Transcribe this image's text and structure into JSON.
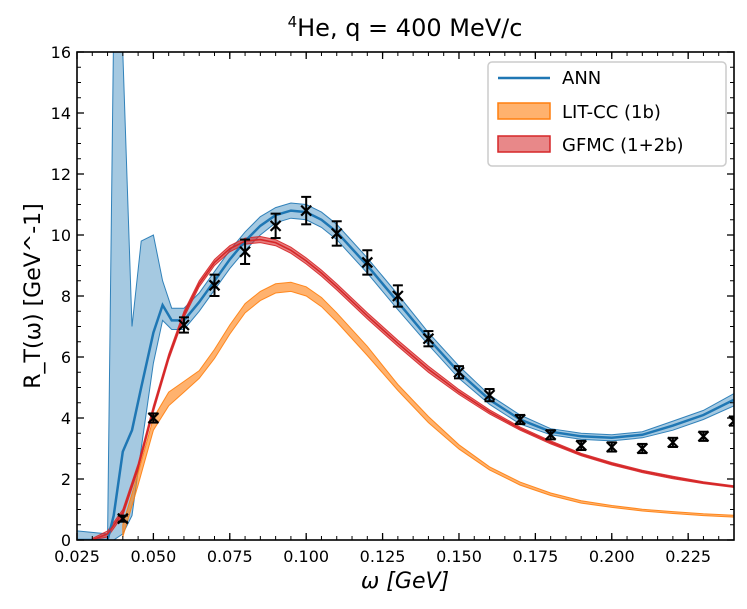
{
  "chart_data": {
    "type": "line",
    "title_prefix": "4",
    "title_rest": "He, q = 400 MeV/c",
    "xlabel": "ω  [GeV]",
    "ylabel": "R_T(ω) [GeV^-1]",
    "xlim": [
      0.025,
      0.24
    ],
    "ylim": [
      0,
      16
    ],
    "xticks": [
      0.025,
      0.05,
      0.075,
      0.1,
      0.125,
      0.15,
      0.175,
      0.2,
      0.225
    ],
    "xtick_labels": [
      "0.025",
      "0.050",
      "0.075",
      "0.100",
      "0.125",
      "0.150",
      "0.175",
      "0.200",
      "0.225"
    ],
    "yticks": [
      0,
      2,
      4,
      6,
      8,
      10,
      12,
      14,
      16
    ],
    "ytick_labels": [
      "0",
      "2",
      "4",
      "6",
      "8",
      "10",
      "12",
      "14",
      "16"
    ],
    "legend": [
      "ANN",
      "LIT-CC (1b)",
      "GFMC (1+2b)"
    ],
    "colors": {
      "ann": "#1f77b4",
      "litcc": "#ff7f0e",
      "gfmc": "#d62728"
    },
    "series": [
      {
        "name": "ANN",
        "x": [
          0.025,
          0.035,
          0.037,
          0.04,
          0.043,
          0.046,
          0.05,
          0.053,
          0.056,
          0.06,
          0.065,
          0.07,
          0.075,
          0.08,
          0.085,
          0.09,
          0.095,
          0.1,
          0.105,
          0.11,
          0.12,
          0.13,
          0.14,
          0.15,
          0.16,
          0.17,
          0.18,
          0.19,
          0.2,
          0.21,
          0.22,
          0.23,
          0.24
        ],
        "y": [
          0.0,
          0.0,
          0.8,
          2.9,
          3.6,
          5.0,
          6.8,
          7.7,
          7.2,
          7.2,
          7.8,
          8.5,
          9.2,
          9.8,
          10.3,
          10.65,
          10.8,
          10.75,
          10.5,
          10.1,
          9.0,
          7.8,
          6.6,
          5.5,
          4.6,
          3.95,
          3.55,
          3.4,
          3.35,
          3.45,
          3.75,
          4.1,
          4.6
        ],
        "lower": [
          0.0,
          0.0,
          0.0,
          0.2,
          0.8,
          3.0,
          5.8,
          7.2,
          6.9,
          6.9,
          7.5,
          8.2,
          8.9,
          9.5,
          10.0,
          10.4,
          10.55,
          10.5,
          10.25,
          9.85,
          8.75,
          7.55,
          6.4,
          5.3,
          4.45,
          3.8,
          3.45,
          3.3,
          3.25,
          3.35,
          3.6,
          3.95,
          4.4
        ],
        "upper": [
          0.3,
          0.2,
          17.0,
          16.0,
          7.0,
          9.8,
          10.0,
          8.5,
          7.6,
          7.6,
          8.1,
          8.8,
          9.5,
          10.1,
          10.6,
          10.9,
          11.05,
          11.0,
          10.75,
          10.35,
          9.25,
          8.05,
          6.8,
          5.7,
          4.75,
          4.1,
          3.65,
          3.5,
          3.45,
          3.55,
          3.9,
          4.25,
          4.8
        ]
      },
      {
        "name": "LIT-CC (1b)",
        "x": [
          0.04,
          0.045,
          0.05,
          0.055,
          0.06,
          0.065,
          0.07,
          0.075,
          0.08,
          0.085,
          0.09,
          0.095,
          0.1,
          0.105,
          0.11,
          0.12,
          0.13,
          0.14,
          0.15,
          0.16,
          0.17,
          0.18,
          0.19,
          0.2,
          0.21,
          0.22,
          0.23,
          0.24
        ],
        "y": [
          0.3,
          2.0,
          3.8,
          4.6,
          5.0,
          5.4,
          6.1,
          6.9,
          7.6,
          8.0,
          8.25,
          8.3,
          8.15,
          7.8,
          7.3,
          6.2,
          5.0,
          3.95,
          3.05,
          2.35,
          1.85,
          1.5,
          1.25,
          1.1,
          0.98,
          0.9,
          0.83,
          0.78
        ],
        "lower": [
          0.1,
          1.8,
          3.6,
          4.4,
          4.85,
          5.3,
          5.95,
          6.75,
          7.45,
          7.85,
          8.1,
          8.15,
          8.0,
          7.65,
          7.15,
          6.05,
          4.9,
          3.85,
          2.98,
          2.3,
          1.8,
          1.46,
          1.21,
          1.07,
          0.95,
          0.87,
          0.8,
          0.75
        ],
        "upper": [
          0.5,
          2.2,
          4.0,
          4.85,
          5.2,
          5.55,
          6.25,
          7.05,
          7.75,
          8.15,
          8.4,
          8.45,
          8.3,
          7.95,
          7.45,
          6.35,
          5.1,
          4.05,
          3.12,
          2.4,
          1.9,
          1.54,
          1.29,
          1.13,
          1.01,
          0.93,
          0.86,
          0.81
        ]
      },
      {
        "name": "GFMC (1+2b)",
        "x": [
          0.03,
          0.035,
          0.04,
          0.045,
          0.05,
          0.055,
          0.06,
          0.065,
          0.07,
          0.075,
          0.08,
          0.085,
          0.09,
          0.095,
          0.1,
          0.105,
          0.11,
          0.12,
          0.13,
          0.14,
          0.15,
          0.16,
          0.17,
          0.18,
          0.19,
          0.2,
          0.21,
          0.22,
          0.23,
          0.24
        ],
        "y": [
          0.0,
          0.2,
          0.9,
          2.4,
          4.3,
          6.0,
          7.4,
          8.4,
          9.1,
          9.55,
          9.8,
          9.85,
          9.75,
          9.5,
          9.15,
          8.75,
          8.3,
          7.35,
          6.45,
          5.6,
          4.85,
          4.2,
          3.65,
          3.2,
          2.8,
          2.5,
          2.25,
          2.05,
          1.88,
          1.75
        ],
        "lower": [
          0.0,
          0.1,
          0.8,
          2.3,
          4.2,
          5.9,
          7.3,
          8.3,
          9.0,
          9.45,
          9.7,
          9.75,
          9.65,
          9.4,
          9.05,
          8.65,
          8.2,
          7.25,
          6.35,
          5.5,
          4.77,
          4.13,
          3.6,
          3.15,
          2.76,
          2.46,
          2.21,
          2.01,
          1.85,
          1.72
        ],
        "upper": [
          0.05,
          0.3,
          1.0,
          2.5,
          4.4,
          6.1,
          7.5,
          8.5,
          9.2,
          9.65,
          9.9,
          9.95,
          9.85,
          9.6,
          9.25,
          8.85,
          8.4,
          7.45,
          6.55,
          5.7,
          4.93,
          4.27,
          3.7,
          3.25,
          2.84,
          2.54,
          2.29,
          2.09,
          1.91,
          1.78
        ]
      }
    ],
    "data_points": {
      "name": "data",
      "x": [
        0.04,
        0.05,
        0.06,
        0.07,
        0.08,
        0.09,
        0.1,
        0.11,
        0.12,
        0.13,
        0.14,
        0.15,
        0.16,
        0.17,
        0.18,
        0.19,
        0.2,
        0.21,
        0.22,
        0.23,
        0.24
      ],
      "y": [
        0.7,
        4.0,
        7.05,
        8.35,
        9.45,
        10.3,
        10.8,
        10.05,
        9.1,
        8.0,
        6.6,
        5.5,
        4.75,
        3.95,
        3.45,
        3.1,
        3.05,
        3.0,
        3.2,
        3.4,
        3.9
      ],
      "err": [
        0.1,
        0.15,
        0.25,
        0.35,
        0.4,
        0.4,
        0.45,
        0.4,
        0.4,
        0.35,
        0.25,
        0.2,
        0.2,
        0.15,
        0.15,
        0.15,
        0.15,
        0.15,
        0.15,
        0.15,
        0.15
      ]
    }
  }
}
